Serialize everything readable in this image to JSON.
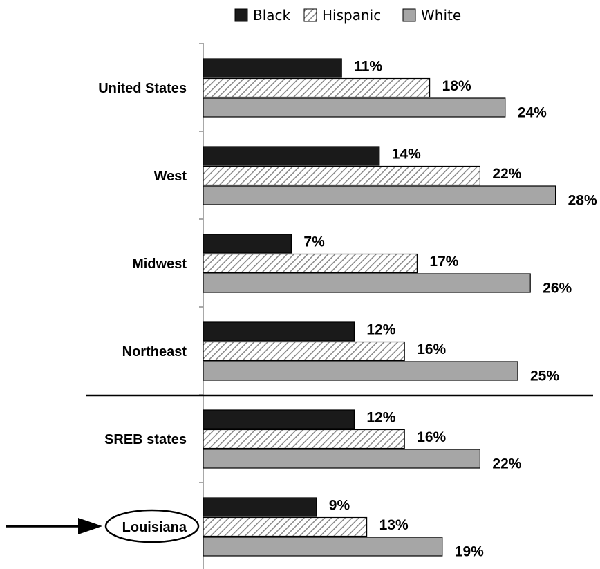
{
  "chart_data": {
    "type": "bar",
    "orientation": "horizontal",
    "categories": [
      "United States",
      "West",
      "Midwest",
      "Northeast",
      "SREB states",
      "Louisiana"
    ],
    "series": [
      {
        "name": "Black",
        "values": [
          11,
          14,
          7,
          12,
          12,
          9
        ],
        "color": "#1a1a1a",
        "pattern": "solid"
      },
      {
        "name": "Hispanic",
        "values": [
          18,
          22,
          17,
          16,
          16,
          13
        ],
        "color": "#ffffff",
        "pattern": "diagonal-hatch"
      },
      {
        "name": "White",
        "values": [
          24,
          28,
          26,
          25,
          22,
          19
        ],
        "color": "#a6a6a6",
        "pattern": "solid"
      }
    ],
    "value_suffix": "%",
    "xlim": [
      0,
      28
    ],
    "legend_position": "top",
    "grid": false,
    "separator_after_category": "Northeast",
    "highlighted_category": "Louisiana",
    "highlight_marks": [
      "ellipse",
      "arrow"
    ]
  }
}
